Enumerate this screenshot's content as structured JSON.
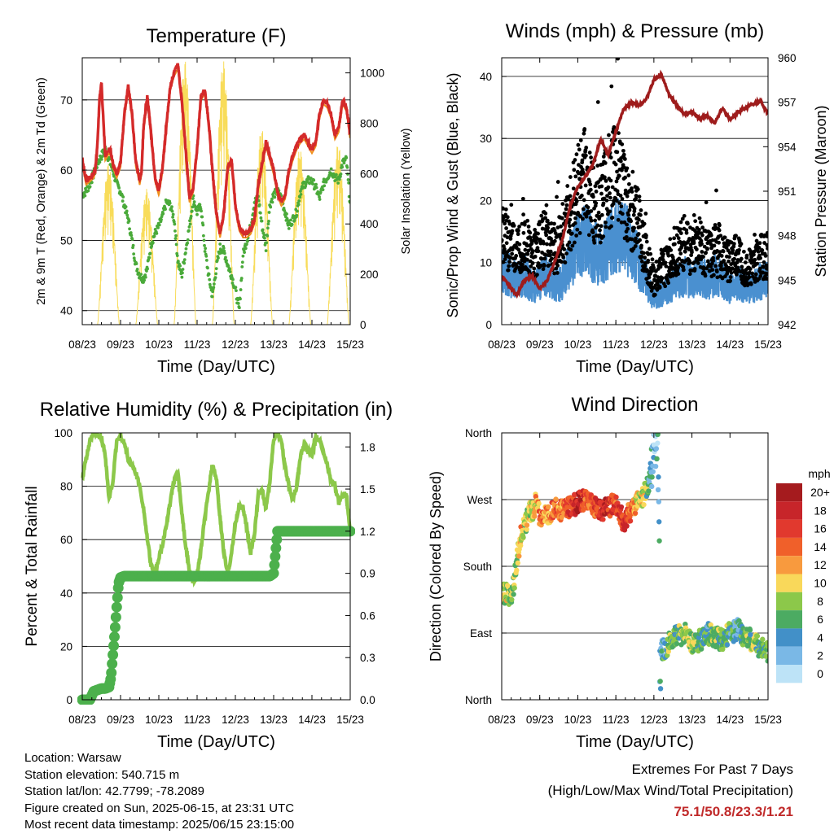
{
  "chart_data": [
    {
      "type": "line",
      "title": "Temperature (F)",
      "xlabel": "Time (Day/UTC)",
      "ylabel_left": "2m & 9m T (Red, Orange) & 2m Td (Green)",
      "ylabel_right": "Solar Insolation (Yellow)",
      "x_ticks": [
        "08/23",
        "09/23",
        "10/23",
        "11/23",
        "12/23",
        "13/23",
        "14/23",
        "15/23"
      ],
      "ylim_left": [
        38,
        76
      ],
      "y_ticks_left": [
        40,
        50,
        60,
        70
      ],
      "ylim_right": [
        0,
        1060
      ],
      "y_ticks_right": [
        0,
        200,
        400,
        600,
        800,
        1000
      ],
      "colors": {
        "t2m": "#d42a2a",
        "t9m": "#f0901e",
        "td2m": "#4aaa3a",
        "solar": "#f8dc5a"
      },
      "series": [
        {
          "name": "2m T",
          "axis": "left",
          "x": [
            0,
            0.05,
            0.1,
            0.2,
            0.3,
            0.35,
            0.4,
            0.45,
            0.5,
            0.6,
            0.7,
            0.75,
            0.8,
            0.9,
            1.0,
            1.1,
            1.2,
            1.3,
            1.4,
            1.45,
            1.5,
            1.55,
            1.6,
            1.7,
            1.8,
            1.9,
            2.0,
            2.1,
            2.2,
            2.3,
            2.4,
            2.5,
            2.6,
            2.7,
            2.8,
            2.9,
            3.0,
            3.1,
            3.2,
            3.3,
            3.4,
            3.5,
            3.6,
            3.7,
            3.8,
            3.9,
            4.0,
            4.1,
            4.2,
            4.3,
            4.4,
            4.5,
            4.6,
            4.7,
            4.8,
            4.9,
            5.0,
            5.1,
            5.2,
            5.3,
            5.4,
            5.5,
            5.6,
            5.7,
            5.8,
            5.9,
            6.0,
            6.1,
            6.2,
            6.3,
            6.4,
            6.5,
            6.6,
            6.7,
            6.8,
            6.9,
            6.95,
            7.0
          ],
          "y": [
            61.5,
            60,
            58.5,
            59,
            59.5,
            60.5,
            64,
            70,
            72.5,
            62,
            63,
            62.5,
            61,
            59.5,
            61,
            68,
            72,
            68,
            61,
            60,
            58.5,
            60,
            66,
            70.5,
            65,
            59,
            57,
            60.5,
            66.5,
            72,
            74,
            75,
            70,
            63,
            56,
            57.5,
            63,
            70.5,
            71.5,
            67,
            60,
            54,
            51,
            54,
            60.5,
            61.5,
            55,
            52,
            51,
            51,
            51.5,
            53,
            58,
            61,
            64,
            62,
            60,
            57,
            55.5,
            56.5,
            60,
            62,
            63.5,
            64.5,
            65,
            64,
            63,
            64,
            68,
            70,
            69.5,
            68,
            65,
            66,
            70,
            69,
            67,
            65
          ]
        },
        {
          "name": "2m Td",
          "axis": "left",
          "x": [
            0,
            0.1,
            0.2,
            0.3,
            0.4,
            0.5,
            0.6,
            0.7,
            0.8,
            0.9,
            1.0,
            1.1,
            1.2,
            1.3,
            1.4,
            1.5,
            1.6,
            1.7,
            1.8,
            1.9,
            2.0,
            2.1,
            2.2,
            2.3,
            2.4,
            2.5,
            2.6,
            2.7,
            2.8,
            2.9,
            3.0,
            3.1,
            3.2,
            3.3,
            3.4,
            3.5,
            3.6,
            3.7,
            3.8,
            3.9,
            4.0,
            4.1,
            4.2,
            4.3,
            4.4,
            4.5,
            4.6,
            4.7,
            4.8,
            4.9,
            5.0,
            5.1,
            5.2,
            5.3,
            5.4,
            5.5,
            5.6,
            5.7,
            5.8,
            5.9,
            6.0,
            6.1,
            6.2,
            6.3,
            6.4,
            6.5,
            6.6,
            6.7,
            6.8,
            6.9,
            7.0
          ],
          "y": [
            56.5,
            57,
            58,
            59.5,
            61,
            62,
            63,
            61.5,
            60,
            58,
            57,
            55,
            53,
            50,
            46.5,
            45,
            44.5,
            46,
            49.5,
            51,
            52,
            53.5,
            55.5,
            55,
            53,
            47,
            45,
            48.5,
            52,
            56,
            54,
            55,
            49,
            45,
            42,
            46,
            49,
            48.5,
            46.5,
            45,
            43,
            40,
            48,
            50,
            52,
            55.5,
            56,
            52,
            49,
            55,
            56.5,
            57,
            56,
            54,
            52,
            53,
            54,
            57,
            58,
            58.5,
            58.5,
            57.5,
            56,
            58,
            59,
            60,
            59,
            58.5,
            61,
            61.5,
            55
          ]
        },
        {
          "name": "Solar Insolation",
          "axis": "right",
          "day_fraction": [
            0.42,
            0.5,
            0.55,
            0.6,
            0.65,
            0.7,
            0.78,
            0.9
          ],
          "peaks": [
            640,
            540,
            1050,
            1050,
            780,
            700,
            720,
            1000
          ],
          "sunrise_sunset_values": [
            0,
            0
          ]
        }
      ]
    },
    {
      "type": "line",
      "title": "Winds (mph) & Pressure (mb)",
      "xlabel": "Time (Day/UTC)",
      "ylabel_left": "Sonic/Prop Wind & Gust (Blue, Black)",
      "ylabel_right": "Station Pressure (Maroon)",
      "x_ticks": [
        "08/23",
        "09/23",
        "10/23",
        "11/23",
        "12/23",
        "13/23",
        "14/23",
        "15/23"
      ],
      "ylim_left": [
        0,
        43
      ],
      "y_ticks_left": [
        0,
        10,
        20,
        30,
        40
      ],
      "ylim_right": [
        942,
        960
      ],
      "y_ticks_right": [
        942,
        945,
        948,
        951,
        954,
        957,
        960
      ],
      "colors": {
        "wind": "#4a90d0",
        "gust": "#000000",
        "pressure": "#9e1c1c"
      },
      "series": [
        {
          "name": "Sonic/Prop Wind",
          "axis": "left",
          "x": [
            0,
            0.2,
            0.4,
            0.6,
            0.8,
            1.0,
            1.2,
            1.4,
            1.6,
            1.8,
            2.0,
            2.2,
            2.4,
            2.6,
            2.8,
            3.0,
            3.2,
            3.4,
            3.6,
            3.8,
            4.0,
            4.2,
            4.4,
            4.6,
            4.8,
            5.0,
            5.2,
            5.4,
            5.6,
            5.8,
            6.0,
            6.2,
            6.4,
            6.6,
            6.8,
            7.0
          ],
          "y": [
            9,
            8,
            7,
            8,
            6,
            7,
            8,
            6,
            7,
            10,
            13,
            14,
            12,
            11,
            13,
            14,
            15,
            12,
            10,
            7,
            4,
            5,
            6,
            7,
            8,
            7,
            8,
            7,
            8,
            7,
            6,
            7,
            6,
            6,
            7,
            7
          ]
        },
        {
          "name": "Gust",
          "axis": "left",
          "x": [
            0,
            0.2,
            0.4,
            0.6,
            0.8,
            1.0,
            1.2,
            1.4,
            1.6,
            1.8,
            2.0,
            2.2,
            2.4,
            2.6,
            2.8,
            3.0,
            3.2,
            3.4,
            3.6,
            3.8,
            4.0,
            4.2,
            4.4,
            4.6,
            4.8,
            5.0,
            5.2,
            5.4,
            5.6,
            5.8,
            6.0,
            6.2,
            6.4,
            6.6,
            6.8,
            7.0
          ],
          "y": [
            15,
            13,
            12,
            14,
            11,
            13,
            14,
            12,
            14,
            18,
            22,
            24,
            20,
            19,
            23,
            25,
            21,
            18,
            16,
            11,
            7,
            9,
            10,
            12,
            13,
            12,
            13,
            11,
            12,
            11,
            10,
            11,
            9,
            9,
            11,
            11
          ]
        },
        {
          "name": "Station Pressure",
          "axis": "right",
          "x": [
            0,
            0.2,
            0.4,
            0.6,
            0.8,
            1.0,
            1.2,
            1.4,
            1.6,
            1.8,
            2.0,
            2.2,
            2.4,
            2.6,
            2.8,
            3.0,
            3.2,
            3.4,
            3.6,
            3.8,
            4.0,
            4.2,
            4.4,
            4.6,
            4.8,
            5.0,
            5.2,
            5.4,
            5.6,
            5.8,
            6.0,
            6.2,
            6.4,
            6.6,
            6.8,
            7.0
          ],
          "y": [
            945.3,
            944.6,
            944.0,
            945.0,
            945.3,
            944.4,
            945.0,
            946.3,
            947.8,
            950.0,
            951.3,
            952.0,
            952.8,
            954.5,
            953.5,
            955.0,
            956.5,
            957.0,
            956.8,
            957.2,
            958.5,
            958.9,
            957.5,
            956.8,
            956.2,
            956.3,
            955.9,
            956.1,
            955.6,
            956.6,
            955.8,
            956.3,
            956.6,
            956.9,
            957.1,
            956.2
          ]
        }
      ]
    },
    {
      "type": "line",
      "title": "Relative Humidity (%) & Precipitation (in)",
      "xlabel": "Time (Day/UTC)",
      "ylabel_left": "Percent & Total Rainfall",
      "x_ticks": [
        "08/23",
        "09/23",
        "10/23",
        "11/23",
        "12/23",
        "13/23",
        "14/23",
        "15/23"
      ],
      "ylim_left": [
        0,
        100
      ],
      "y_ticks_left": [
        0,
        20,
        40,
        60,
        80,
        100
      ],
      "ylim_right": [
        0,
        1.9
      ],
      "y_ticks_right": [
        "0.0",
        "0.3",
        "0.6",
        "0.9",
        "1.2",
        "1.5",
        "1.8"
      ],
      "colors": {
        "rh": "#8cc84a",
        "precip": "#4cb04c"
      },
      "series": [
        {
          "name": "Relative Humidity",
          "axis": "left",
          "x": [
            0,
            0.1,
            0.2,
            0.3,
            0.4,
            0.5,
            0.6,
            0.7,
            0.8,
            0.9,
            1.0,
            1.1,
            1.2,
            1.3,
            1.4,
            1.5,
            1.6,
            1.7,
            1.8,
            1.9,
            2.0,
            2.1,
            2.2,
            2.3,
            2.4,
            2.5,
            2.6,
            2.7,
            2.8,
            2.9,
            3.0,
            3.1,
            3.2,
            3.3,
            3.4,
            3.5,
            3.6,
            3.7,
            3.8,
            3.9,
            4.0,
            4.1,
            4.2,
            4.3,
            4.4,
            4.5,
            4.6,
            4.7,
            4.8,
            4.9,
            5.0,
            5.1,
            5.2,
            5.3,
            5.4,
            5.5,
            5.6,
            5.7,
            5.8,
            5.9,
            6.0,
            6.1,
            6.2,
            6.3,
            6.4,
            6.5,
            6.6,
            6.7,
            6.8,
            6.9,
            7.0
          ],
          "y": [
            83,
            90,
            97,
            100,
            99,
            98,
            92,
            75,
            82,
            97,
            99,
            96,
            90,
            88,
            85,
            80,
            72,
            60,
            50,
            48,
            53,
            58,
            66,
            74,
            82,
            85,
            70,
            58,
            48,
            44,
            47,
            56,
            68,
            78,
            88,
            83,
            68,
            55,
            47,
            55,
            66,
            73,
            72,
            64,
            55,
            62,
            77,
            78,
            72,
            82,
            98,
            100,
            97,
            87,
            80,
            75,
            80,
            91,
            96,
            93,
            92,
            98,
            97,
            93,
            88,
            82,
            80,
            74,
            77,
            77,
            62
          ]
        },
        {
          "name": "Total Precipitation",
          "axis": "right",
          "x": [
            0,
            0.2,
            0.3,
            0.4,
            0.5,
            0.6,
            0.7,
            0.75,
            0.8,
            0.85,
            0.9,
            0.95,
            1.0,
            1.1,
            2.0,
            3.0,
            4.0,
            4.9,
            5.0,
            5.1,
            5.2,
            6.0,
            7.0
          ],
          "y": [
            0.0,
            0.0,
            0.06,
            0.07,
            0.08,
            0.08,
            0.09,
            0.16,
            0.32,
            0.48,
            0.66,
            0.83,
            0.87,
            0.88,
            0.88,
            0.88,
            0.88,
            0.88,
            0.9,
            1.2,
            1.2,
            1.2,
            1.2
          ]
        }
      ]
    },
    {
      "type": "scatter",
      "title": "Wind Direction",
      "xlabel": "Time (Day/UTC)",
      "ylabel_left": "Direction (Colored By Speed)",
      "x_ticks": [
        "08/23",
        "09/23",
        "10/23",
        "11/23",
        "12/23",
        "13/23",
        "14/23",
        "15/23"
      ],
      "ylim_left": [
        0,
        360
      ],
      "y_tick_values": [
        0,
        90,
        180,
        270,
        360
      ],
      "y_ticks_left": [
        "North",
        "East",
        "South",
        "West",
        "North"
      ],
      "series": [
        {
          "name": "Wind Direction",
          "x": [
            0,
            0.2,
            0.3,
            0.4,
            0.5,
            0.6,
            0.7,
            0.8,
            0.9,
            1.0,
            1.2,
            1.4,
            1.6,
            1.8,
            2.0,
            2.2,
            2.4,
            2.6,
            2.8,
            3.0,
            3.2,
            3.4,
            3.6,
            3.8,
            3.9,
            4.0,
            4.1,
            4.2,
            4.3,
            4.4,
            4.6,
            4.8,
            5.0,
            5.2,
            5.4,
            5.6,
            5.8,
            6.0,
            6.2,
            6.4,
            6.6,
            6.8,
            7.0
          ],
          "y": [
            145,
            140,
            150,
            190,
            220,
            235,
            250,
            255,
            265,
            250,
            245,
            260,
            255,
            260,
            265,
            270,
            260,
            255,
            260,
            265,
            240,
            255,
            270,
            280,
            300,
            330,
            345,
            70,
            65,
            80,
            85,
            90,
            75,
            80,
            90,
            85,
            80,
            90,
            95,
            85,
            80,
            70,
            65
          ],
          "speed_mph": [
            9,
            8,
            7,
            9,
            11,
            9,
            8,
            10,
            11,
            13,
            12,
            14,
            12,
            16,
            19,
            15,
            14,
            18,
            17,
            15,
            16,
            14,
            9,
            8,
            4,
            2,
            3,
            3,
            5,
            7,
            6,
            8,
            8,
            7,
            5,
            8,
            7,
            6,
            4,
            7,
            8,
            6,
            7
          ]
        }
      ],
      "colorbar": {
        "title": "mph",
        "labels": [
          "20+",
          "18",
          "16",
          "14",
          "12",
          "10",
          "8",
          "6",
          "4",
          "2",
          "0"
        ],
        "colors": [
          "#a51b1e",
          "#c7252a",
          "#e1392e",
          "#f0602a",
          "#f89a3e",
          "#f9d85a",
          "#8cc84a",
          "#4cab62",
          "#4290c8",
          "#7ab8e6",
          "#bde3f7"
        ]
      }
    }
  ],
  "station": {
    "location": "Location: Warsaw",
    "elevation": "Station elevation: 540.715 m",
    "latlon": "Station lat/lon: 42.7799; -78.2089",
    "created": "Figure created on Sun, 2025-06-15, at 23:31 UTC",
    "latest": "Most recent data timestamp: 2025/06/15 23:15:00"
  },
  "extremes": {
    "title": "Extremes For Past 7 Days",
    "subtitle": "(High/Low/Max Wind/Total Precipitation)",
    "values": "75.1/50.8/23.3/1.21"
  }
}
